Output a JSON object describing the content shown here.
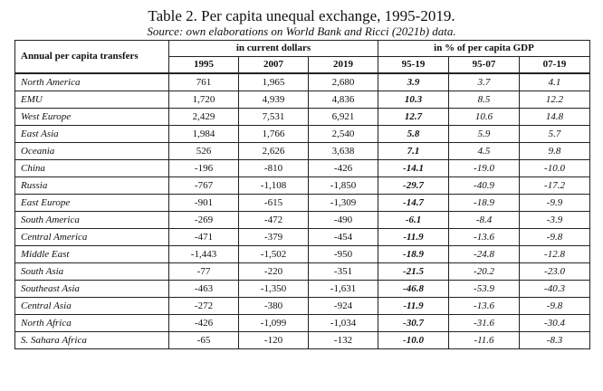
{
  "title": "Table 2. Per capita unequal exchange, 1995-2019.",
  "subtitle": "Source: own elaborations on World Bank and Ricci (2021b) data.",
  "table": {
    "row_header": "Annual per capita transfers",
    "group_headers": [
      "in current dollars",
      "in % of per capita GDP"
    ],
    "columns": [
      "1995",
      "2007",
      "2019",
      "95-19",
      "95-07",
      "07-19"
    ],
    "rows": [
      {
        "region": "North America",
        "v": [
          "761",
          "1,965",
          "2,680",
          "3.9",
          "3.7",
          "4.1"
        ]
      },
      {
        "region": "EMU",
        "v": [
          "1,720",
          "4,939",
          "4,836",
          "10.3",
          "8.5",
          "12.2"
        ]
      },
      {
        "region": "West Europe",
        "v": [
          "2,429",
          "7,531",
          "6,921",
          "12.7",
          "10.6",
          "14.8"
        ]
      },
      {
        "region": "East Asia",
        "v": [
          "1,984",
          "1,766",
          "2,540",
          "5.8",
          "5.9",
          "5.7"
        ]
      },
      {
        "region": "Oceania",
        "v": [
          "526",
          "2,626",
          "3,638",
          "7.1",
          "4.5",
          "9.8"
        ]
      },
      {
        "region": "China",
        "v": [
          "-196",
          "-810",
          "-426",
          "-14.1",
          "-19.0",
          "-10.0"
        ]
      },
      {
        "region": "Russia",
        "v": [
          "-767",
          "-1,108",
          "-1,850",
          "-29.7",
          "-40.9",
          "-17.2"
        ]
      },
      {
        "region": "East Europe",
        "v": [
          "-901",
          "-615",
          "-1,309",
          "-14.7",
          "-18.9",
          "-9.9"
        ]
      },
      {
        "region": "South America",
        "v": [
          "-269",
          "-472",
          "-490",
          "-6.1",
          "-8.4",
          "-3.9"
        ]
      },
      {
        "region": "Central America",
        "v": [
          "-471",
          "-379",
          "-454",
          "-11.9",
          "-13.6",
          "-9.8"
        ]
      },
      {
        "region": "Middle East",
        "v": [
          "-1,443",
          "-1,502",
          "-950",
          "-18.9",
          "-24.8",
          "-12.8"
        ]
      },
      {
        "region": "South Asia",
        "v": [
          "-77",
          "-220",
          "-351",
          "-21.5",
          "-20.2",
          "-23.0"
        ]
      },
      {
        "region": "Southeast Asia",
        "v": [
          "-463",
          "-1,350",
          "-1,631",
          "-46.8",
          "-53.9",
          "-40.3"
        ]
      },
      {
        "region": "Central Asia",
        "v": [
          "-272",
          "-380",
          "-924",
          "-11.9",
          "-13.6",
          "-9.8"
        ]
      },
      {
        "region": "North Africa",
        "v": [
          "-426",
          "-1,099",
          "-1,034",
          "-30.7",
          "-31.6",
          "-30.4"
        ]
      },
      {
        "region": "S. Sahara Africa",
        "v": [
          "-65",
          "-120",
          "-132",
          "-10.0",
          "-11.6",
          "-8.3"
        ]
      }
    ]
  }
}
